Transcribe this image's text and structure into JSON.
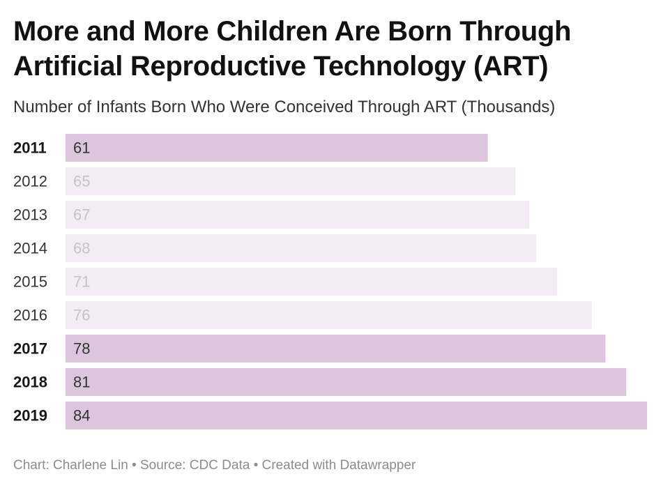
{
  "header": {
    "title_line1": "More and More Children Are Born Through",
    "title_line2": "Artificial Reproductive Technology (ART)",
    "subtitle": "Number of Infants Born Who Were Conceived Through ART (Thousands)"
  },
  "chart_data": {
    "type": "bar",
    "orientation": "horizontal",
    "title": "More and More Children Are Born Through Artificial Reproductive Technology (ART)",
    "subtitle": "Number of Infants Born Who Were Conceived Through ART (Thousands)",
    "xlabel": "",
    "ylabel": "",
    "xlim": [
      0,
      84
    ],
    "grid": false,
    "legend": "none",
    "categories": [
      "2011",
      "2012",
      "2013",
      "2014",
      "2015",
      "2016",
      "2017",
      "2018",
      "2019"
    ],
    "values": [
      61,
      65,
      67,
      68,
      71,
      76,
      78,
      81,
      84
    ],
    "highlighted": [
      true,
      false,
      false,
      false,
      false,
      false,
      true,
      true,
      true
    ],
    "colors": {
      "highlight_bar": "#dcc6de",
      "muted_bar": "#f3ecf4",
      "highlight_value_text": "#333333",
      "muted_value_text": "#c4c4c4",
      "highlight_label_text": "#181818",
      "muted_label_text": "#333333"
    }
  },
  "footer": {
    "text": "Chart: Charlene Lin • Source: CDC Data • Created with Datawrapper"
  }
}
